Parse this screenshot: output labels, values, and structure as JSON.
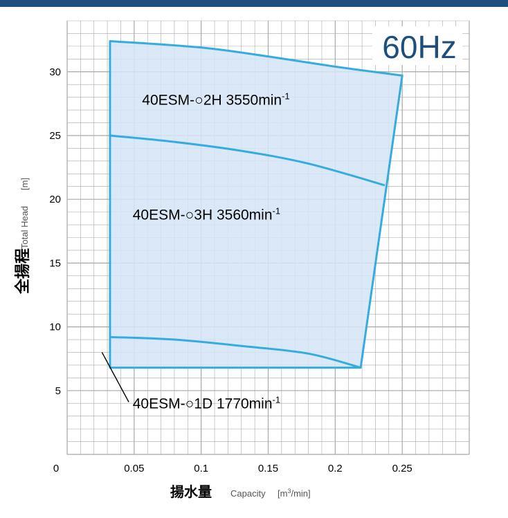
{
  "chart_data": {
    "type": "area",
    "badge": "60Hz",
    "xlabel": {
      "jp": "揚水量",
      "en": "Capacity",
      "unit_open": "[m",
      "unit_sup": "3",
      "unit_close": "/min]"
    },
    "ylabel": {
      "jp": "全揚程",
      "en": "Total Head",
      "unit": "[m]"
    },
    "xlim": [
      0,
      0.3
    ],
    "ylim": [
      0,
      34
    ],
    "x_ticks": [
      "0",
      "0.05",
      "0.1",
      "0.15",
      "0.2",
      "0.25"
    ],
    "y_ticks": [
      "5",
      "10",
      "15",
      "20",
      "25",
      "30"
    ],
    "grid": true,
    "region": {
      "top_curve": [
        [
          0.032,
          32.4
        ],
        [
          0.1,
          31.9
        ],
        [
          0.15,
          31.2
        ],
        [
          0.2,
          30.4
        ],
        [
          0.25,
          29.7
        ]
      ],
      "right_edge": [
        [
          0.25,
          29.7
        ],
        [
          0.219,
          6.8
        ]
      ],
      "bottom": [
        [
          0.219,
          6.8
        ],
        [
          0.032,
          6.8
        ]
      ],
      "left_edge": [
        [
          0.032,
          6.8
        ],
        [
          0.032,
          32.4
        ]
      ]
    },
    "divider_curves": [
      {
        "points": [
          [
            0.032,
            25.0
          ],
          [
            0.08,
            24.5
          ],
          [
            0.13,
            23.8
          ],
          [
            0.18,
            22.8
          ],
          [
            0.237,
            21.1
          ]
        ]
      },
      {
        "points": [
          [
            0.032,
            9.2
          ],
          [
            0.08,
            9.0
          ],
          [
            0.13,
            8.5
          ],
          [
            0.18,
            7.9
          ],
          [
            0.219,
            6.8
          ]
        ]
      }
    ],
    "annotations": [
      {
        "model": "40ESM-○2H",
        "speed": "3550min",
        "sup": "-1",
        "x": 0.111,
        "y": 27.4
      },
      {
        "model": "40ESM-○3H",
        "speed": "3560min",
        "sup": "-1",
        "x": 0.104,
        "y": 18.4
      },
      {
        "model": "40ESM-○1D",
        "speed": "1770min",
        "sup": "-1",
        "x": 0.104,
        "y": 3.6,
        "leader_from": [
          0.046,
          4.1
        ],
        "leader_to": [
          0.026,
          8.0
        ]
      }
    ],
    "colors": {
      "area_fill": "#d5e5f6",
      "curve": "#35ace0",
      "top_bar": "#1d4e7e",
      "badge_text": "#1d4e7e",
      "grid": "#a7a7a7"
    }
  }
}
